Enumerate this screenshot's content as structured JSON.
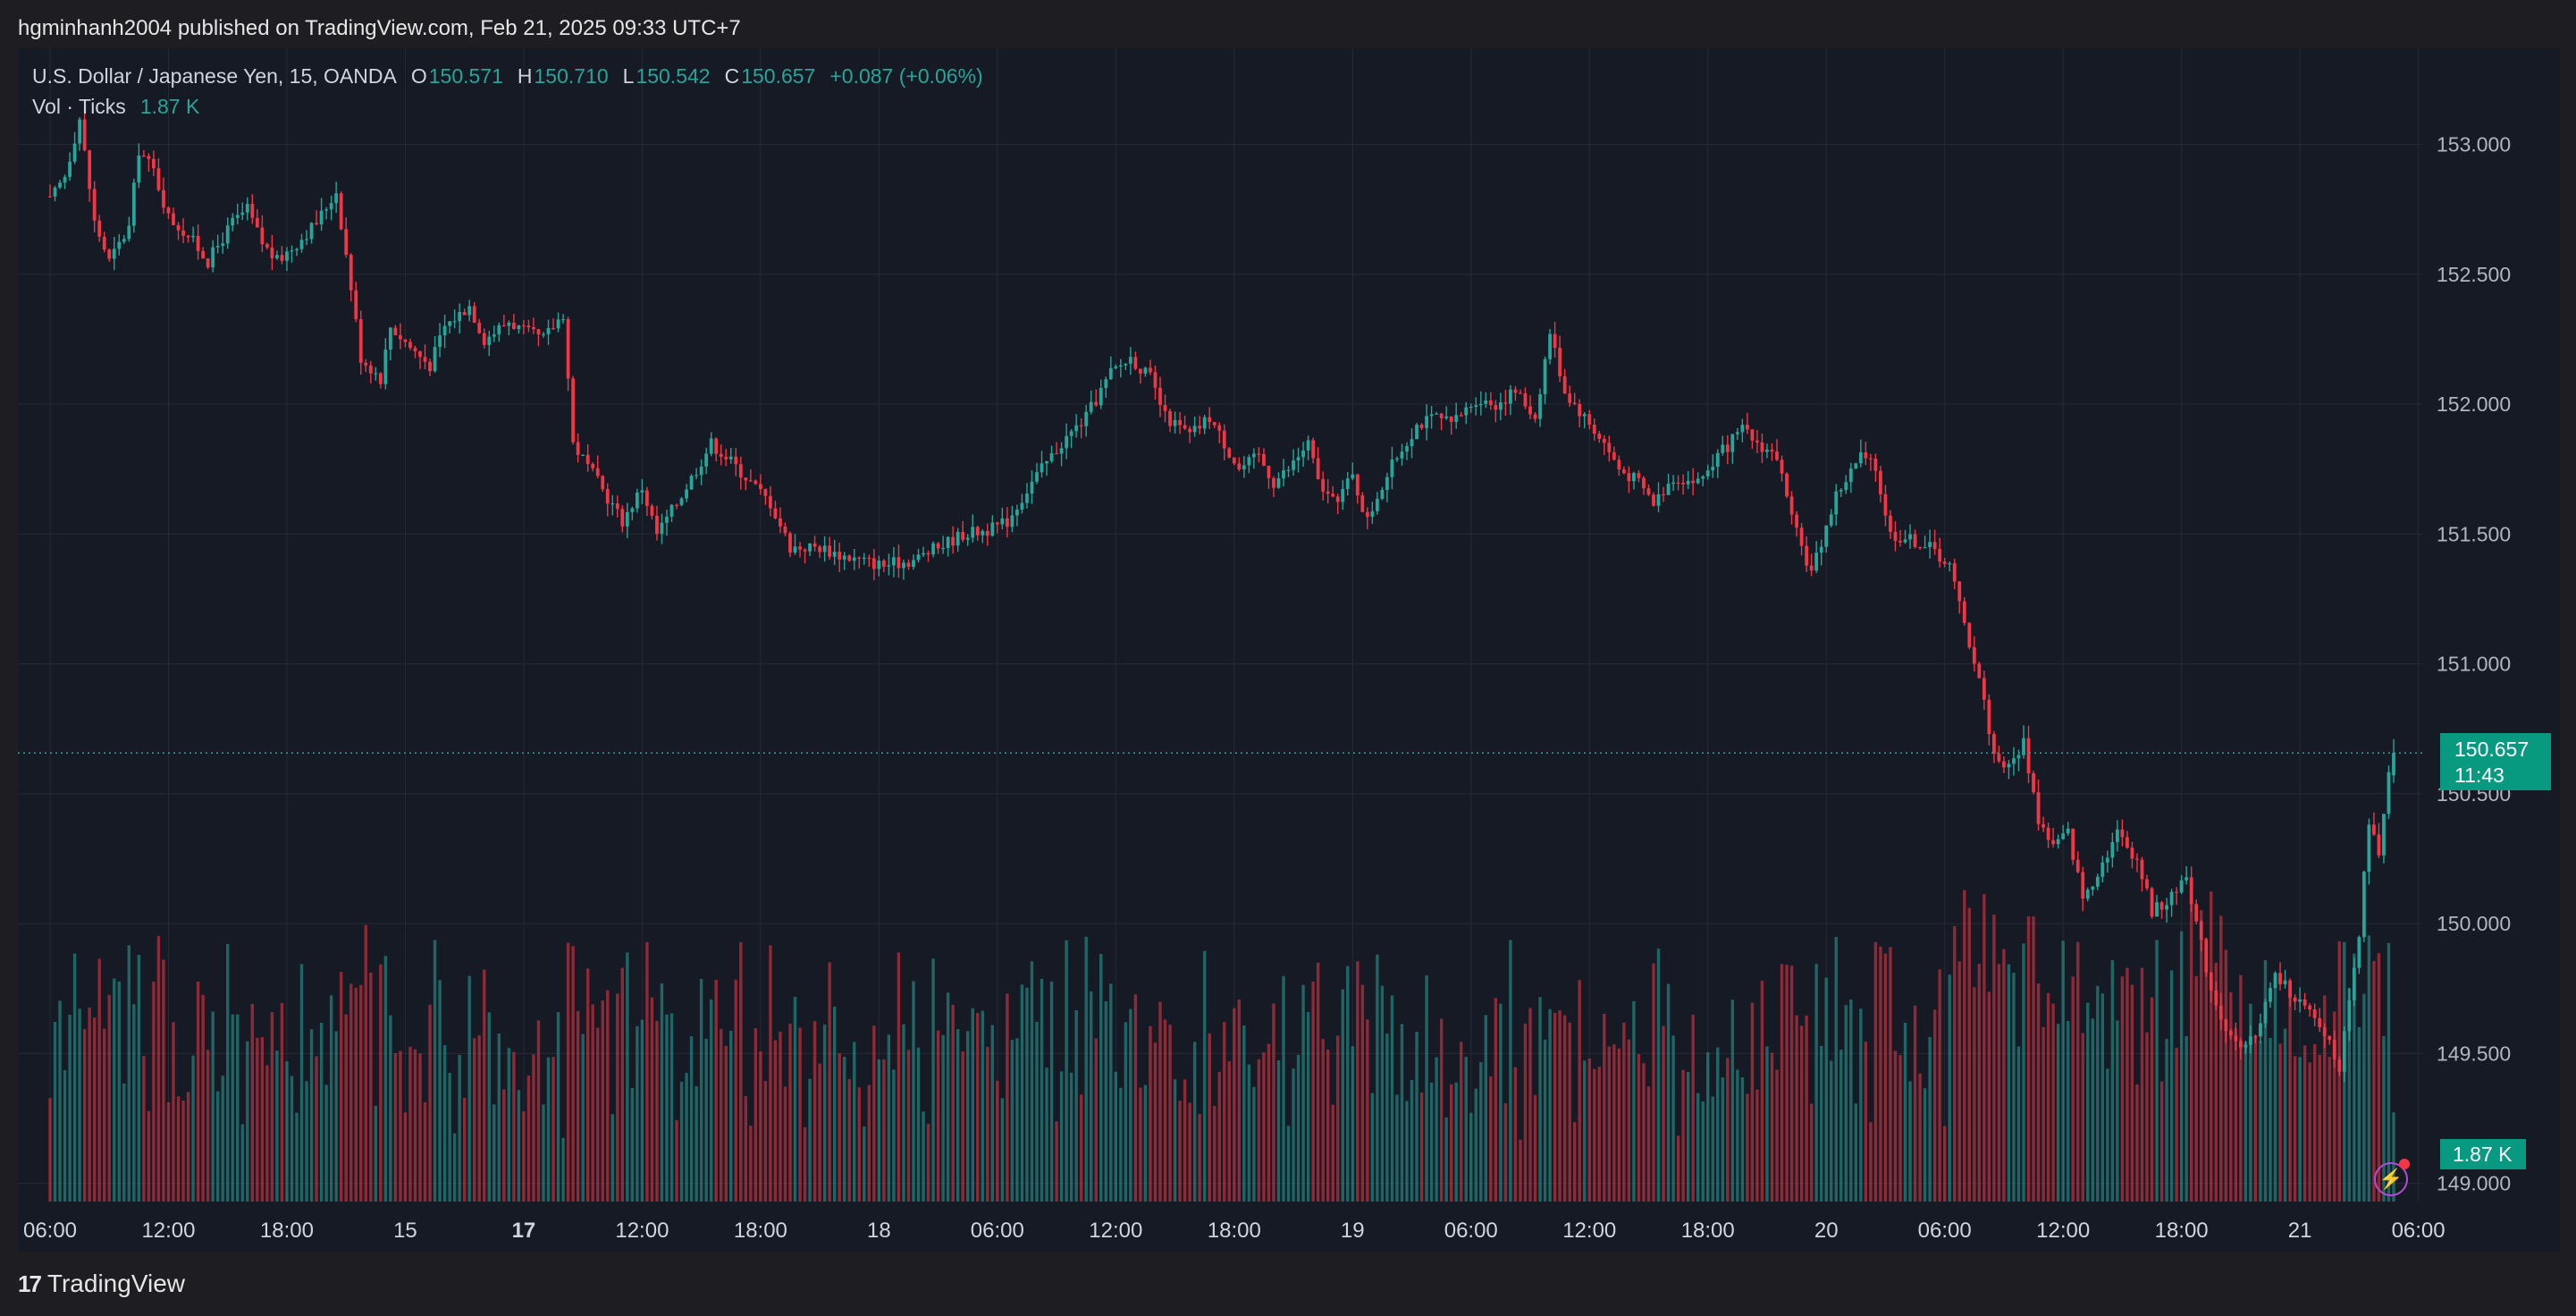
{
  "header": {
    "published_text": "hgminhanh2004 published on TradingView.com, Feb 21, 2025 09:33 UTC+7"
  },
  "legend": {
    "symbol": "U.S. Dollar / Japanese Yen, 15, OANDA",
    "o_key": "O",
    "o_val": "150.571",
    "h_key": "H",
    "h_val": "150.710",
    "l_key": "L",
    "l_val": "150.542",
    "c_key": "C",
    "c_val": "150.657",
    "change": "+0.087 (+0.06%)",
    "vol_label": "Vol · Ticks",
    "vol_val": "1.87 K"
  },
  "last_price": {
    "price": "150.657",
    "countdown": "11:43"
  },
  "volume_tag": "1.87 K",
  "footer": {
    "logo": "17",
    "brand": "TradingView"
  },
  "colors": {
    "up": "#26a69a",
    "down": "#f23645",
    "background": "#161a25",
    "grid": "#262a35"
  },
  "chart_data": {
    "type": "candlestick",
    "symbol": "U.S. Dollar / Japanese Yen",
    "interval": "15",
    "source": "OANDA",
    "y_ticks": [
      "153.000",
      "152.500",
      "152.000",
      "151.500",
      "151.000",
      "150.500",
      "150.000",
      "149.500",
      "149.000"
    ],
    "ylim": [
      148.93,
      153.37
    ],
    "x_ticks": [
      {
        "label": "06:00",
        "t": 0
      },
      {
        "label": "12:00",
        "t": 24
      },
      {
        "label": "18:00",
        "t": 48
      },
      {
        "label": "15",
        "t": 72
      },
      {
        "label": "17",
        "t": 96,
        "bold": true
      },
      {
        "label": "12:00",
        "t": 120
      },
      {
        "label": "18:00",
        "t": 144
      },
      {
        "label": "18",
        "t": 168
      },
      {
        "label": "06:00",
        "t": 192
      },
      {
        "label": "12:00",
        "t": 216
      },
      {
        "label": "18:00",
        "t": 240
      },
      {
        "label": "19",
        "t": 264
      },
      {
        "label": "06:00",
        "t": 288
      },
      {
        "label": "12:00",
        "t": 312
      },
      {
        "label": "18:00",
        "t": 336
      },
      {
        "label": "20",
        "t": 360
      },
      {
        "label": "06:00",
        "t": 384
      },
      {
        "label": "12:00",
        "t": 408
      },
      {
        "label": "18:00",
        "t": 432
      },
      {
        "label": "21",
        "t": 456
      },
      {
        "label": "06:00",
        "t": 480
      }
    ],
    "close_path": [
      [
        0,
        152.78
      ],
      [
        3,
        152.88
      ],
      [
        6,
        153.1
      ],
      [
        9,
        152.7
      ],
      [
        12,
        152.55
      ],
      [
        16,
        152.68
      ],
      [
        18,
        152.98
      ],
      [
        21,
        152.9
      ],
      [
        24,
        152.72
      ],
      [
        28,
        152.65
      ],
      [
        32,
        152.55
      ],
      [
        37,
        152.7
      ],
      [
        40,
        152.75
      ],
      [
        43,
        152.62
      ],
      [
        46,
        152.55
      ],
      [
        50,
        152.62
      ],
      [
        54,
        152.7
      ],
      [
        58,
        152.82
      ],
      [
        61,
        152.45
      ],
      [
        63,
        152.18
      ],
      [
        67,
        152.1
      ],
      [
        69,
        152.3
      ],
      [
        73,
        152.22
      ],
      [
        77,
        152.15
      ],
      [
        80,
        152.3
      ],
      [
        85,
        152.38
      ],
      [
        88,
        152.25
      ],
      [
        93,
        152.32
      ],
      [
        96,
        152.28
      ],
      [
        100,
        152.25
      ],
      [
        104,
        152.35
      ],
      [
        106,
        151.85
      ],
      [
        111,
        151.7
      ],
      [
        116,
        151.55
      ],
      [
        120,
        151.68
      ],
      [
        123,
        151.5
      ],
      [
        127,
        151.62
      ],
      [
        131,
        151.75
      ],
      [
        134,
        151.85
      ],
      [
        138,
        151.78
      ],
      [
        142,
        151.7
      ],
      [
        146,
        151.62
      ],
      [
        150,
        151.45
      ],
      [
        156,
        151.45
      ],
      [
        160,
        151.42
      ],
      [
        164,
        151.4
      ],
      [
        169,
        151.38
      ],
      [
        175,
        151.4
      ],
      [
        180,
        151.45
      ],
      [
        185,
        151.5
      ],
      [
        191,
        151.52
      ],
      [
        194,
        151.55
      ],
      [
        199,
        151.7
      ],
      [
        205,
        151.85
      ],
      [
        210,
        151.95
      ],
      [
        215,
        152.12
      ],
      [
        219,
        152.18
      ],
      [
        223,
        152.1
      ],
      [
        226,
        151.95
      ],
      [
        231,
        151.88
      ],
      [
        235,
        151.95
      ],
      [
        238,
        151.85
      ],
      [
        241,
        151.75
      ],
      [
        245,
        151.8
      ],
      [
        248,
        151.7
      ],
      [
        251,
        151.75
      ],
      [
        255,
        151.85
      ],
      [
        257,
        151.7
      ],
      [
        260,
        151.62
      ],
      [
        264,
        151.72
      ],
      [
        267,
        151.55
      ],
      [
        269,
        151.65
      ],
      [
        273,
        151.8
      ],
      [
        277,
        151.92
      ],
      [
        281,
        151.95
      ],
      [
        284,
        151.92
      ],
      [
        289,
        152.02
      ],
      [
        293,
        152.0
      ],
      [
        297,
        152.05
      ],
      [
        301,
        151.95
      ],
      [
        304,
        152.28
      ],
      [
        307,
        152.05
      ],
      [
        311,
        151.95
      ],
      [
        315,
        151.85
      ],
      [
        318,
        151.75
      ],
      [
        322,
        151.7
      ],
      [
        325,
        151.62
      ],
      [
        329,
        151.72
      ],
      [
        334,
        151.7
      ],
      [
        338,
        151.8
      ],
      [
        343,
        151.9
      ],
      [
        346,
        151.85
      ],
      [
        350,
        151.8
      ],
      [
        353,
        151.55
      ],
      [
        357,
        151.35
      ],
      [
        362,
        151.65
      ],
      [
        367,
        151.8
      ],
      [
        370,
        151.75
      ],
      [
        373,
        151.5
      ],
      [
        377,
        151.48
      ],
      [
        381,
        151.45
      ],
      [
        385,
        151.38
      ],
      [
        388,
        151.15
      ],
      [
        391,
        150.95
      ],
      [
        394,
        150.65
      ],
      [
        397,
        150.6
      ],
      [
        400,
        150.7
      ],
      [
        403,
        150.4
      ],
      [
        406,
        150.3
      ],
      [
        409,
        150.35
      ],
      [
        412,
        150.1
      ],
      [
        415,
        150.2
      ],
      [
        419,
        150.35
      ],
      [
        423,
        150.25
      ],
      [
        426,
        150.05
      ],
      [
        430,
        150.1
      ],
      [
        433,
        150.2
      ],
      [
        435,
        150.0
      ],
      [
        438,
        149.75
      ],
      [
        441,
        149.6
      ],
      [
        444,
        149.5
      ],
      [
        447,
        149.58
      ],
      [
        451,
        149.8
      ],
      [
        455,
        149.72
      ],
      [
        458,
        149.65
      ],
      [
        462,
        149.55
      ],
      [
        464,
        149.45
      ],
      [
        466,
        149.68
      ],
      [
        468,
        149.95
      ],
      [
        470,
        150.4
      ],
      [
        472,
        150.25
      ],
      [
        474,
        150.57
      ],
      [
        475,
        150.657
      ]
    ],
    "volume_max_k": 6,
    "last_volume": "1.87 K"
  }
}
